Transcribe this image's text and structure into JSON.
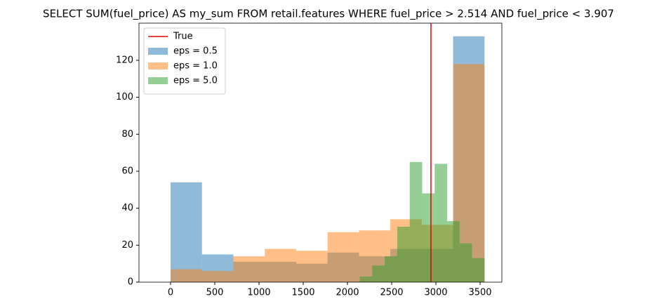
{
  "chart_data": {
    "type": "histogram",
    "title": "SELECT SUM(fuel_price) AS my_sum FROM retail.features WHERE fuel_price  >  2.514 AND fuel_price  <  3.907",
    "series": [
      {
        "name": "eps = 0.5",
        "color": "#1f77b4",
        "bins": [
          0,
          355,
          710,
          1065,
          1420,
          1775,
          2130,
          2485,
          2840,
          3195,
          3550
        ],
        "values": [
          54,
          15,
          11,
          11,
          10,
          16,
          14,
          18,
          18,
          133
        ]
      },
      {
        "name": "eps = 1.0",
        "color": "#ff7f0e",
        "bins": [
          0,
          355,
          710,
          1065,
          1420,
          1775,
          2130,
          2485,
          2840,
          3195,
          3550
        ],
        "values": [
          7,
          6,
          14,
          18,
          17,
          27,
          28,
          34,
          31,
          118
        ]
      },
      {
        "name": "eps = 5.0",
        "color": "#2ca02c",
        "bins": [
          2140,
          2281,
          2422,
          2563,
          2704,
          2845,
          2986,
          3127,
          3268,
          3409,
          3550
        ],
        "values": [
          3,
          9,
          14,
          30,
          65,
          48,
          64,
          33,
          21,
          13
        ]
      }
    ],
    "alpha": 0.5,
    "reference_line": {
      "name": "True",
      "value": 2944,
      "color": "#e00000"
    },
    "xlim": [
      -357,
      3746
    ],
    "ylim": [
      0,
      140.1
    ],
    "xticks": [
      0,
      500,
      1000,
      1500,
      2000,
      2500,
      3000,
      3500
    ],
    "yticks": [
      0,
      20,
      40,
      60,
      80,
      100,
      120
    ],
    "grid": false,
    "legend": "upper left"
  }
}
